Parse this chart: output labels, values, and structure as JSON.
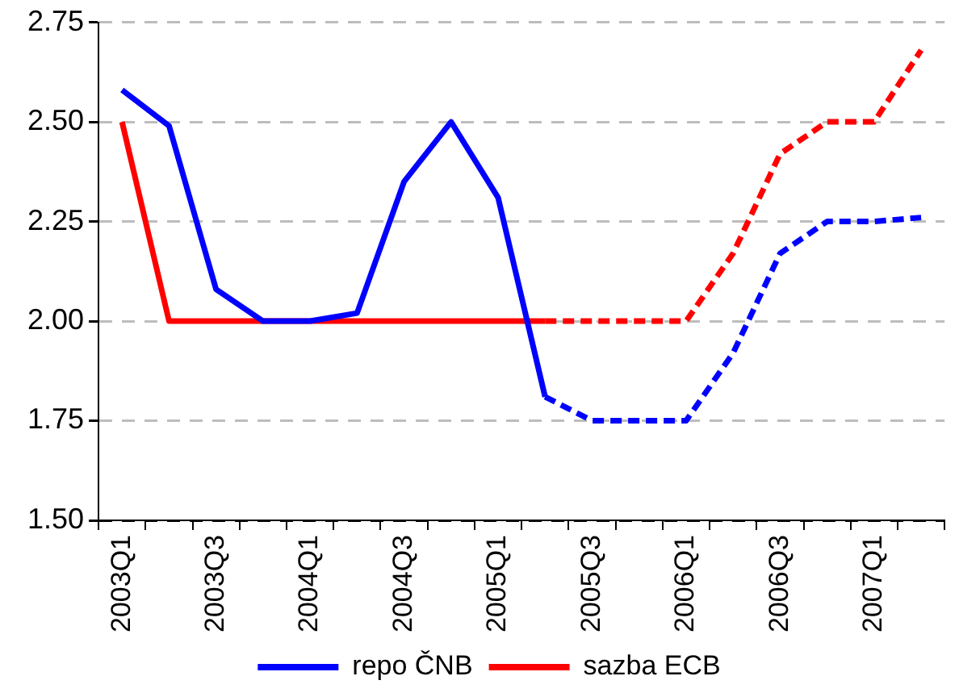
{
  "chart_data": {
    "type": "line",
    "categories": [
      "2003Q1",
      null,
      "2003Q3",
      null,
      "2004Q1",
      null,
      "2004Q3",
      null,
      "2005Q1",
      null,
      "2005Q3",
      null,
      "2006Q1",
      null,
      "2006Q3",
      null,
      "2007Q1",
      null
    ],
    "series": [
      {
        "name": "repo ČNB",
        "color": "#0000ff",
        "line_style": "solid",
        "values": [
          2.58,
          2.49,
          2.08,
          2.0,
          2.0,
          2.02,
          2.35,
          2.5,
          2.31,
          1.81,
          null,
          null,
          null,
          null,
          null,
          null,
          null,
          null
        ]
      },
      {
        "name": "sazba ECB",
        "color": "#ff0000",
        "line_style": "solid",
        "values": [
          2.5,
          2.0,
          2.0,
          2.0,
          2.0,
          2.0,
          2.0,
          2.0,
          2.0,
          2.0,
          null,
          null,
          null,
          null,
          null,
          null,
          null,
          null
        ]
      },
      {
        "color": "#0000ff",
        "line_style": "dashed",
        "values": [
          null,
          null,
          null,
          null,
          null,
          null,
          null,
          null,
          null,
          1.81,
          1.75,
          1.75,
          1.75,
          1.92,
          2.17,
          2.25,
          2.25,
          2.26
        ]
      },
      {
        "color": "#ff0000",
        "line_style": "dashed",
        "values": [
          null,
          null,
          null,
          null,
          null,
          null,
          null,
          null,
          null,
          2.0,
          2.0,
          2.0,
          2.0,
          2.17,
          2.42,
          2.5,
          2.5,
          2.68
        ]
      }
    ],
    "ylim": [
      1.5,
      2.75
    ],
    "yticks": [
      {
        "value": 1.5,
        "label": "1.50"
      },
      1.75,
      {
        "value": 2,
        "label": "2.00"
      },
      2.25,
      {
        "value": 2.5,
        "label": "2.50"
      },
      2.75
    ],
    "grid": "y",
    "legend": "bottom",
    "marker": "none"
  }
}
